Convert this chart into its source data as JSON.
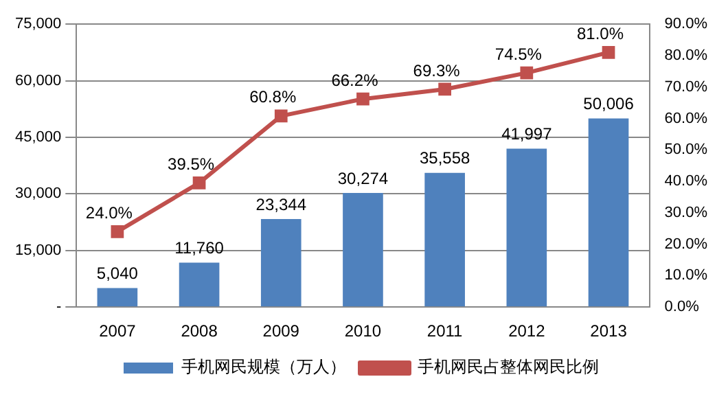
{
  "chart_data": {
    "type": "bar",
    "categories": [
      "2007",
      "2008",
      "2009",
      "2010",
      "2011",
      "2012",
      "2013"
    ],
    "series": [
      {
        "name": "手机网民规模（万人）",
        "color": "#4f81bd",
        "values": [
          5040,
          11760,
          23344,
          30274,
          35558,
          41997,
          50006
        ],
        "value_labels": [
          "5,040",
          "11,760",
          "23,344",
          "30,274",
          "35,558",
          "41,997",
          "50,006"
        ]
      },
      {
        "name": "手机网民占整体网民比例",
        "type": "line",
        "axis": "y2",
        "color": "#c0504d",
        "marker": "square",
        "values": [
          24.0,
          39.5,
          60.8,
          66.2,
          69.3,
          74.5,
          81.0
        ],
        "value_labels": [
          "24.0%",
          "39.5%",
          "60.8%",
          "66.2%",
          "69.3%",
          "74.5%",
          "81.0%"
        ]
      }
    ],
    "ylim": [
      0,
      75000
    ],
    "yticks": [
      {
        "value": 0,
        "label": "-"
      },
      {
        "value": 15000,
        "label": "15,000"
      },
      {
        "value": 30000,
        "label": "30,000"
      },
      {
        "value": 45000,
        "label": "45,000"
      },
      {
        "value": 60000,
        "label": "60,000"
      },
      {
        "value": 75000,
        "label": "75,000"
      }
    ],
    "y2lim": [
      0,
      90
    ],
    "y2ticks": [
      {
        "value": 0,
        "label": "0.0%"
      },
      {
        "value": 10,
        "label": "10.0%"
      },
      {
        "value": 20,
        "label": "20.0%"
      },
      {
        "value": 30,
        "label": "30.0%"
      },
      {
        "value": 40,
        "label": "40.0%"
      },
      {
        "value": 50,
        "label": "50.0%"
      },
      {
        "value": 60,
        "label": "60.0%"
      },
      {
        "value": 70,
        "label": "70.0%"
      },
      {
        "value": 80,
        "label": "80.0%"
      },
      {
        "value": 90,
        "label": "90.0%"
      }
    ],
    "grid": "y",
    "legend": "bottom"
  }
}
